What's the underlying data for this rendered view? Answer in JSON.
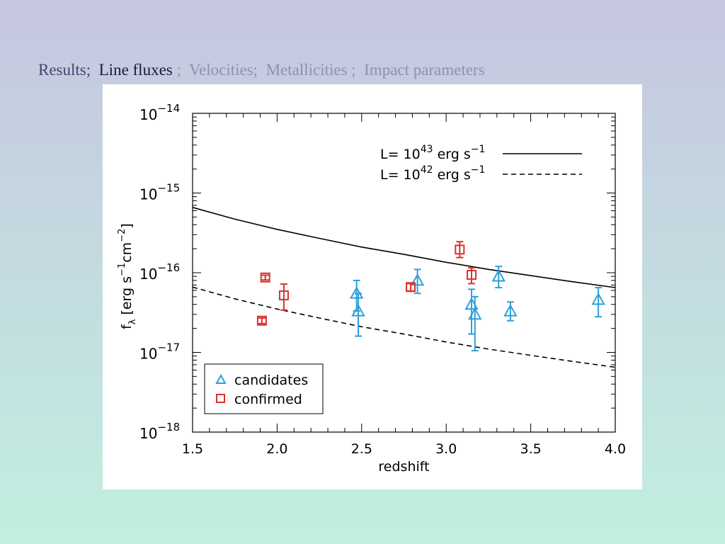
{
  "nav": {
    "items": [
      {
        "label": "Results;",
        "state": "visited"
      },
      {
        "label": "Line fluxes",
        "state": "active"
      },
      {
        "label": ";",
        "state": "inactive"
      },
      {
        "label": "Velocities;",
        "state": "inactive"
      },
      {
        "label": "Metallicities ;",
        "state": "inactive"
      },
      {
        "label": "Impact parameters",
        "state": "inactive"
      }
    ]
  },
  "chart_data": {
    "type": "scatter",
    "xlabel": "redshift",
    "ylabel": {
      "base": "f",
      "sub": "λ",
      "text": "[erg s",
      "exp1": "-1",
      "mid": "cm",
      "exp2": "-2",
      "end": "]"
    },
    "xlim": [
      1.5,
      4.0
    ],
    "ylim": [
      1e-18,
      1e-14
    ],
    "yscale": "log",
    "grid": false,
    "x_ticks": [
      "1.5",
      "2.0",
      "2.5",
      "3.0",
      "3.5",
      "4.0"
    ],
    "y_ticks": [
      {
        "base": "10",
        "exp": "-18",
        "value": 1e-18
      },
      {
        "base": "10",
        "exp": "-17",
        "value": 1e-17
      },
      {
        "base": "10",
        "exp": "-16",
        "value": 1e-16
      },
      {
        "base": "10",
        "exp": "-15",
        "value": 1e-15
      },
      {
        "base": "10",
        "exp": "-14",
        "value": 1e-14
      }
    ],
    "curves": [
      {
        "label_prefix": "L= 10",
        "label_exp": "43",
        "label_suffix": " erg s",
        "label_exp2": "-1",
        "style": "solid",
        "x": [
          1.5,
          1.75,
          2.0,
          2.25,
          2.5,
          2.75,
          3.0,
          3.25,
          3.5,
          3.75,
          4.0
        ],
        "y": [
          6.6e-16,
          4.7e-16,
          3.5e-16,
          2.7e-16,
          2.1e-16,
          1.7e-16,
          1.35e-16,
          1.1e-16,
          9.2e-17,
          7.7e-17,
          6.5e-17
        ]
      },
      {
        "label_prefix": "L= 10",
        "label_exp": "42",
        "label_suffix": " erg s",
        "label_exp2": "-1",
        "style": "dashed",
        "x": [
          1.5,
          1.75,
          2.0,
          2.25,
          2.5,
          2.75,
          3.0,
          3.25,
          3.5,
          3.75,
          4.0
        ],
        "y": [
          6.6e-17,
          4.7e-17,
          3.5e-17,
          2.7e-17,
          2.1e-17,
          1.7e-17,
          1.35e-17,
          1.1e-17,
          9.2e-18,
          7.7e-18,
          6.5e-18
        ]
      }
    ],
    "series": [
      {
        "name": "candidates",
        "marker": "triangle",
        "color": "#2f9fd8",
        "points": [
          {
            "x": 2.47,
            "y": 5.5e-17,
            "lo": 3.3e-17,
            "hi": 8e-17
          },
          {
            "x": 2.48,
            "y": 3.3e-17,
            "lo": 1.6e-17,
            "hi": 5.5e-17
          },
          {
            "x": 2.83,
            "y": 8e-17,
            "lo": 5.5e-17,
            "hi": 1.1e-16
          },
          {
            "x": 3.15,
            "y": 4e-17,
            "lo": 1.7e-17,
            "hi": 6.2e-17
          },
          {
            "x": 3.17,
            "y": 3e-17,
            "lo": 1.05e-17,
            "hi": 5e-17
          },
          {
            "x": 3.31,
            "y": 9e-17,
            "lo": 6.5e-17,
            "hi": 1.2e-16
          },
          {
            "x": 3.38,
            "y": 3.3e-17,
            "lo": 2.5e-17,
            "hi": 4.3e-17
          },
          {
            "x": 3.9,
            "y": 4.6e-17,
            "lo": 2.8e-17,
            "hi": 6.5e-17
          }
        ]
      },
      {
        "name": "confirmed",
        "marker": "square",
        "color": "#d9322d",
        "points": [
          {
            "x": 1.91,
            "y": 2.5e-17,
            "lo": 2.3e-17,
            "hi": 2.7e-17
          },
          {
            "x": 1.93,
            "y": 8.7e-17,
            "lo": 8.1e-17,
            "hi": 9.3e-17
          },
          {
            "x": 2.04,
            "y": 5.2e-17,
            "lo": 3.4e-17,
            "hi": 7.2e-17
          },
          {
            "x": 2.79,
            "y": 6.6e-17,
            "lo": 5.9e-17,
            "hi": 7.3e-17
          },
          {
            "x": 3.08,
            "y": 1.95e-16,
            "lo": 1.55e-16,
            "hi": 2.45e-16
          },
          {
            "x": 3.15,
            "y": 9.4e-17,
            "lo": 7.3e-17,
            "hi": 1.15e-16
          }
        ]
      }
    ],
    "legend": {
      "placement": "bottom-left",
      "entries": [
        "candidates",
        "confirmed"
      ]
    },
    "curve_legend": {
      "placement": "top-right"
    }
  }
}
